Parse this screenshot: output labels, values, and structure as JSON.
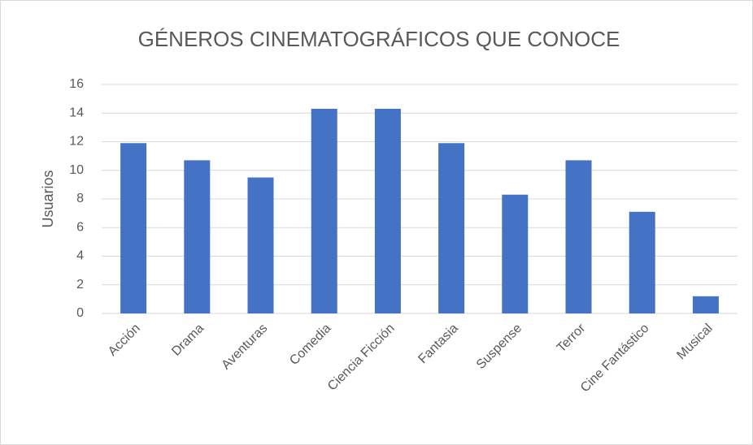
{
  "chart_data": {
    "type": "bar",
    "title": "GÉNEROS CINEMATOGRÁFICOS QUE CONOCE",
    "y_label": "Usuarios",
    "categories": [
      "Acción",
      "Drama",
      "Aventuras",
      "Comedia",
      "Ciencia Ficción",
      "Fantasia",
      "Suspense",
      "Terror",
      "Cine Fantástico",
      "Musical"
    ],
    "values": [
      11.9,
      10.7,
      9.5,
      14.3,
      14.3,
      11.9,
      8.3,
      10.7,
      7.1,
      1.2
    ],
    "color": "#4472c4",
    "ylim": [
      0,
      16
    ],
    "yticks": [
      0,
      2,
      4,
      6,
      8,
      10,
      12,
      14,
      16
    ],
    "grid": true
  }
}
